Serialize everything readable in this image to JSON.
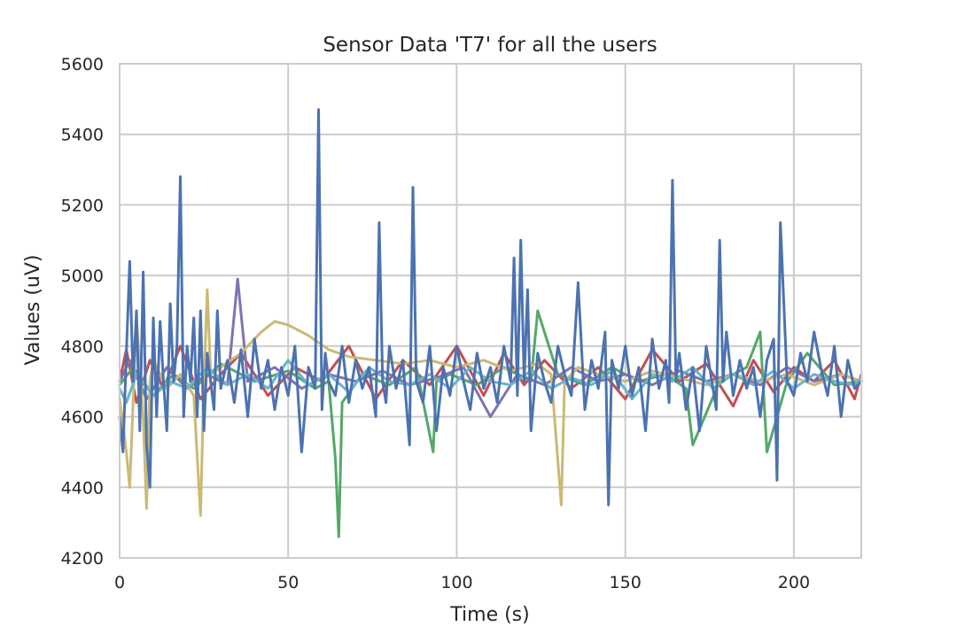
{
  "chart_data": {
    "type": "line",
    "title": "Sensor Data 'T7' for all the users",
    "xlabel": "Time (s)",
    "ylabel": "Values (uV)",
    "xlim": [
      0,
      220
    ],
    "ylim": [
      4200,
      5600
    ],
    "xticks": [
      0,
      50,
      100,
      150,
      200
    ],
    "yticks": [
      4200,
      4400,
      4600,
      4800,
      5000,
      5200,
      5400,
      5600
    ],
    "grid": true,
    "legend": "none",
    "series": [
      {
        "color": "#C44E52",
        "x": [
          0,
          2,
          5,
          9,
          13,
          18,
          24,
          30,
          36,
          44,
          52,
          60,
          68,
          76,
          84,
          92,
          100,
          108,
          114,
          120,
          126,
          134,
          142,
          150,
          158,
          166,
          174,
          182,
          188,
          194,
          200,
          206,
          212,
          218,
          220
        ],
        "values": [
          4700,
          4790,
          4640,
          4760,
          4680,
          4800,
          4650,
          4720,
          4780,
          4660,
          4740,
          4700,
          4800,
          4650,
          4760,
          4690,
          4800,
          4660,
          4780,
          4690,
          4760,
          4680,
          4740,
          4650,
          4790,
          4700,
          4750,
          4630,
          4760,
          4670,
          4740,
          4700,
          4760,
          4650,
          4720
        ]
      },
      {
        "color": "#55A868",
        "x": [
          0,
          4,
          10,
          16,
          22,
          30,
          40,
          50,
          58,
          62,
          64,
          65,
          66,
          72,
          80,
          88,
          93,
          94,
          98,
          106,
          114,
          122,
          124,
          130,
          138,
          146,
          154,
          162,
          168,
          170,
          178,
          186,
          190,
          192,
          198,
          204,
          212,
          220
        ],
        "values": [
          4690,
          4740,
          4660,
          4720,
          4680,
          4750,
          4700,
          4730,
          4680,
          4700,
          4480,
          4260,
          4640,
          4720,
          4690,
          4740,
          4500,
          4700,
          4720,
          4690,
          4740,
          4700,
          4900,
          4720,
          4690,
          4740,
          4700,
          4720,
          4680,
          4520,
          4700,
          4740,
          4840,
          4500,
          4700,
          4780,
          4690,
          4700
        ]
      },
      {
        "color": "#8172B2",
        "x": [
          0,
          3,
          8,
          14,
          20,
          26,
          32,
          35,
          38,
          46,
          54,
          62,
          70,
          78,
          86,
          94,
          102,
          110,
          118,
          126,
          134,
          142,
          150,
          158,
          166,
          174,
          182,
          190,
          198,
          206,
          214,
          220
        ],
        "values": [
          4700,
          4760,
          4650,
          4740,
          4680,
          4720,
          4690,
          4990,
          4700,
          4740,
          4680,
          4720,
          4700,
          4730,
          4690,
          4710,
          4740,
          4600,
          4720,
          4690,
          4740,
          4700,
          4720,
          4690,
          4730,
          4700,
          4720,
          4690,
          4740,
          4700,
          4720,
          4700
        ]
      },
      {
        "color": "#CCB974",
        "x": [
          0,
          2,
          3,
          5,
          7,
          8,
          9,
          10,
          14,
          18,
          22,
          24,
          25,
          26,
          27,
          30,
          36,
          42,
          46,
          50,
          56,
          62,
          68,
          76,
          84,
          92,
          100,
          108,
          116,
          124,
          128,
          131,
          132,
          136,
          142,
          150,
          158,
          166,
          174,
          182,
          190,
          198,
          206,
          214,
          220
        ],
        "values": [
          4650,
          4500,
          4400,
          4880,
          4600,
          4340,
          4700,
          4760,
          4680,
          4720,
          4660,
          4320,
          4700,
          4960,
          4720,
          4740,
          4780,
          4840,
          4870,
          4860,
          4830,
          4790,
          4770,
          4760,
          4750,
          4760,
          4740,
          4760,
          4730,
          4750,
          4720,
          4350,
          4700,
          4740,
          4720,
          4700,
          4730,
          4710,
          4690,
          4720,
          4700,
          4720,
          4690,
          4720,
          4700
        ]
      },
      {
        "color": "#64B5CD",
        "x": [
          0,
          2,
          5,
          10,
          15,
          20,
          26,
          32,
          38,
          44,
          50,
          56,
          62,
          68,
          74,
          80,
          86,
          92,
          98,
          104,
          110,
          116,
          122,
          128,
          134,
          140,
          146,
          152,
          158,
          164,
          170,
          176,
          182,
          188,
          194,
          200,
          206,
          212,
          218,
          220
        ],
        "values": [
          4680,
          4640,
          4720,
          4660,
          4700,
          4680,
          4740,
          4690,
          4720,
          4680,
          4760,
          4690,
          4720,
          4670,
          4740,
          4700,
          4690,
          4720,
          4680,
          4740,
          4700,
          4690,
          4730,
          4680,
          4710,
          4690,
          4730,
          4650,
          4720,
          4700,
          4740,
          4680,
          4720,
          4690,
          4730,
          4680,
          4720,
          4700,
          4690,
          4710
        ]
      },
      {
        "color": "#4C72B0",
        "x": [
          0,
          1,
          2,
          3,
          4,
          5,
          6,
          7,
          8,
          9,
          10,
          11,
          12,
          13,
          14,
          15,
          16,
          17,
          18,
          19,
          20,
          21,
          22,
          23,
          24,
          25,
          26,
          27,
          28,
          29,
          30,
          32,
          34,
          36,
          38,
          40,
          42,
          44,
          46,
          48,
          50,
          52,
          54,
          56,
          58,
          59,
          60,
          61,
          62,
          64,
          66,
          68,
          70,
          72,
          74,
          76,
          77,
          78,
          79,
          80,
          82,
          84,
          86,
          87,
          88,
          90,
          92,
          94,
          96,
          98,
          100,
          102,
          104,
          106,
          108,
          110,
          112,
          114,
          116,
          117,
          118,
          119,
          120,
          121,
          122,
          124,
          126,
          128,
          130,
          132,
          134,
          136,
          138,
          140,
          142,
          144,
          145,
          146,
          148,
          150,
          152,
          154,
          156,
          158,
          160,
          162,
          163,
          164,
          165,
          166,
          168,
          170,
          172,
          174,
          176,
          177,
          178,
          179,
          180,
          182,
          184,
          186,
          188,
          190,
          192,
          194,
          195,
          196,
          198,
          200,
          202,
          204,
          206,
          208,
          210,
          212,
          214,
          216,
          218,
          220
        ],
        "values": [
          4600,
          4500,
          4780,
          5040,
          4700,
          4900,
          4560,
          5010,
          4520,
          4400,
          4880,
          4600,
          4870,
          4700,
          4560,
          4920,
          4700,
          4800,
          5280,
          4600,
          4800,
          4700,
          4880,
          4600,
          4900,
          4560,
          4780,
          4700,
          4620,
          4900,
          4680,
          4760,
          4640,
          4790,
          4600,
          4820,
          4680,
          4760,
          4620,
          4740,
          4660,
          4800,
          4500,
          4740,
          4680,
          5470,
          4620,
          4780,
          4700,
          4660,
          4800,
          4640,
          4760,
          4680,
          4740,
          4600,
          5150,
          4700,
          4640,
          4800,
          4680,
          4760,
          4520,
          5250,
          4700,
          4640,
          4800,
          4560,
          4740,
          4660,
          4800,
          4700,
          4620,
          4780,
          4680,
          4740,
          4640,
          4800,
          4700,
          5050,
          4660,
          5100,
          4700,
          4960,
          4560,
          4780,
          4700,
          4640,
          4800,
          4720,
          4660,
          4980,
          4620,
          4760,
          4680,
          4840,
          4350,
          4760,
          4680,
          4800,
          4660,
          4740,
          4560,
          4820,
          4680,
          4760,
          4640,
          5270,
          4700,
          4780,
          4620,
          4740,
          4560,
          4800,
          4680,
          4620,
          5100,
          4700,
          4840,
          4660,
          4760,
          4680,
          4740,
          4600,
          4760,
          4820,
          4420,
          5150,
          4700,
          4660,
          4780,
          4700,
          4840,
          4740,
          4660,
          4800,
          4600,
          4760,
          4680,
          4700
        ]
      }
    ]
  }
}
